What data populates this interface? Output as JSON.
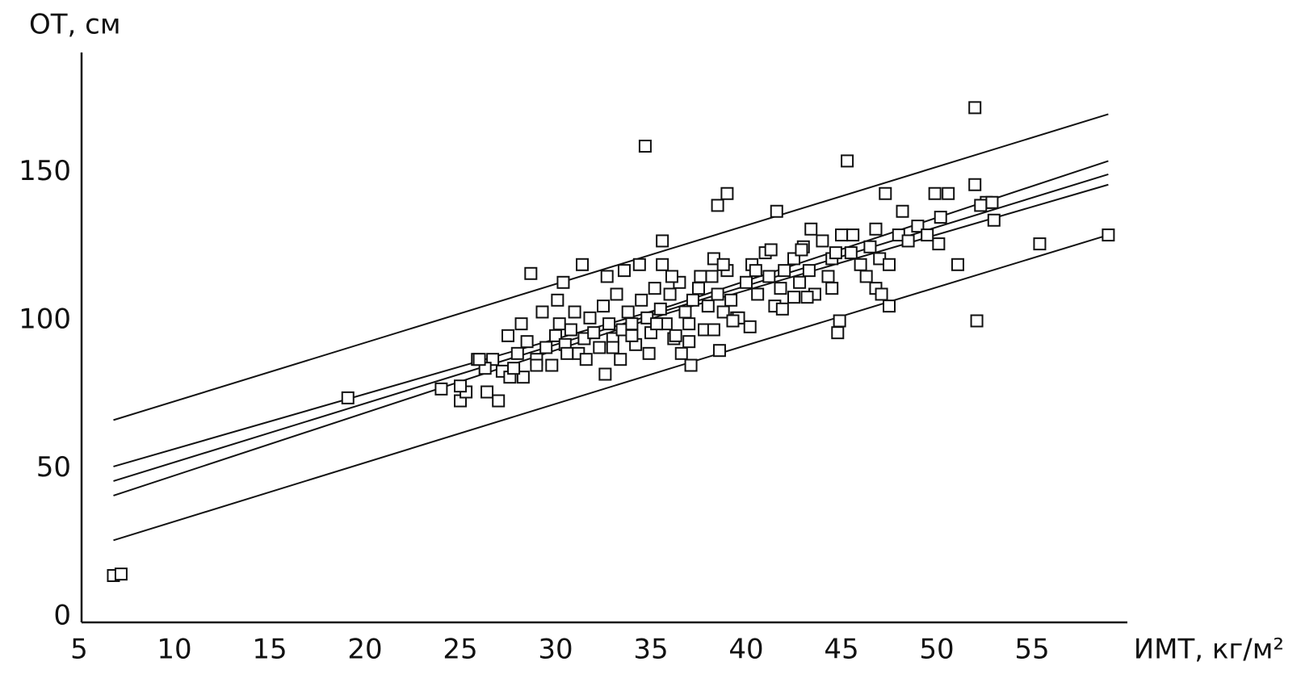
{
  "chart_data": {
    "type": "scatter",
    "y_label": "ОТ, см",
    "x_label": "ИМТ, кг/м²",
    "xlim": [
      5,
      60
    ],
    "ylim": [
      0,
      190
    ],
    "xticks": [
      5,
      10,
      15,
      20,
      25,
      30,
      35,
      40,
      45,
      50,
      55
    ],
    "yticks": [
      0,
      50,
      100,
      150
    ],
    "series": [
      {
        "mode": "markers",
        "color": "#111111",
        "x": [
          6.8,
          7.2,
          19.1,
          34.7,
          52,
          45.3,
          52.1,
          55.4,
          59,
          38.5,
          39,
          41.6,
          28.7,
          47.3,
          49.9,
          50.6,
          52,
          52.6,
          52.9,
          52.3,
          53,
          51.1,
          50.1,
          48.2,
          47.5,
          44.8,
          44.9,
          40.2,
          38.6,
          37.1,
          32.6,
          26.4,
          27,
          25,
          25.3,
          24,
          25,
          25.9,
          26.7,
          26.3,
          27.2,
          27.6,
          28.3,
          28.0,
          28.5,
          29,
          29.5,
          30,
          30.2,
          30.5,
          30.8,
          31,
          31.2,
          31.5,
          31.8,
          32,
          32.3,
          32.5,
          32.8,
          33,
          33.2,
          33.5,
          33.8,
          34,
          34.2,
          34.5,
          34.8,
          35,
          35.2,
          35.5,
          35.8,
          36,
          36.2,
          36.5,
          36.8,
          37,
          37.2,
          37.5,
          37.8,
          38,
          38.2,
          38.5,
          38.8,
          39,
          39.2,
          39.5,
          40,
          40.3,
          40.6,
          41,
          41.2,
          41.5,
          41.8,
          42,
          42.5,
          42.8,
          43,
          43.3,
          43.6,
          44,
          44.3,
          44.5,
          45,
          45.5,
          46,
          46.5,
          46.8,
          47,
          47.5,
          48,
          48.5,
          49,
          49.5,
          50.2,
          26,
          27.5,
          28.2,
          29.3,
          30.1,
          30.4,
          31.4,
          32.7,
          33.6,
          34.4,
          35.6,
          35.6,
          36.1,
          37.6,
          38.3,
          38.8,
          40.5,
          41.3,
          42.9,
          43.4,
          44.7,
          45.6,
          46.8,
          31.6,
          33.4,
          34.9,
          36.6,
          37,
          33,
          30.6,
          29.8,
          29,
          27.8,
          36.3,
          39.6,
          41.9,
          42.5,
          43.2,
          44.5,
          46.3,
          47.1,
          38.3,
          39.3,
          35.3,
          34
        ],
        "values": [
          15,
          15.5,
          75,
          160,
          173,
          155,
          101,
          127,
          130,
          140,
          144,
          138,
          117,
          144,
          144,
          144,
          147,
          141,
          141,
          140,
          135,
          120,
          127,
          138,
          106,
          97,
          101,
          99,
          91,
          86,
          83,
          77,
          74,
          74,
          77,
          78,
          79,
          88,
          88,
          85,
          84,
          82,
          82,
          90,
          94,
          88,
          92,
          96,
          100,
          93,
          98,
          104,
          90,
          95,
          102,
          97,
          92,
          106,
          100,
          95,
          110,
          98,
          104,
          100,
          93,
          108,
          102,
          97,
          112,
          105,
          100,
          110,
          95,
          114,
          104,
          100,
          108,
          112,
          98,
          106,
          116,
          110,
          104,
          118,
          108,
          102,
          114,
          120,
          110,
          124,
          116,
          106,
          112,
          118,
          122,
          114,
          126,
          118,
          110,
          128,
          116,
          122,
          130,
          124,
          120,
          126,
          112,
          122,
          120,
          130,
          128,
          133,
          130,
          136,
          88,
          96,
          100,
          104,
          108,
          114,
          120,
          116,
          118,
          120,
          128,
          120,
          116,
          116,
          122,
          120,
          118,
          125,
          125,
          132,
          124,
          130,
          132,
          88,
          88,
          90,
          90,
          94,
          92,
          90,
          86,
          86,
          85,
          96,
          102,
          105,
          109,
          109,
          112,
          116,
          110,
          98,
          101,
          100,
          96
        ]
      },
      {
        "mode": "lines",
        "color": "#111111",
        "x": [
          6.8,
          36,
          59
        ],
        "values": [
          67.5,
          125.3,
          170.8
        ]
      },
      {
        "mode": "lines",
        "color": "#111111",
        "x": [
          6.8,
          36,
          59
        ],
        "values": [
          51.8,
          106,
          155
        ]
      },
      {
        "mode": "lines",
        "color": "#111111",
        "x": [
          6.8,
          36,
          59
        ],
        "values": [
          46.9,
          104.9,
          150.5
        ]
      },
      {
        "mode": "lines",
        "color": "#111111",
        "x": [
          6.8,
          36,
          59
        ],
        "values": [
          42,
          103.8,
          147
        ]
      },
      {
        "mode": "lines",
        "color": "#111111",
        "x": [
          6.8,
          36,
          59
        ],
        "values": [
          26.9,
          84.9,
          130
        ]
      }
    ]
  }
}
